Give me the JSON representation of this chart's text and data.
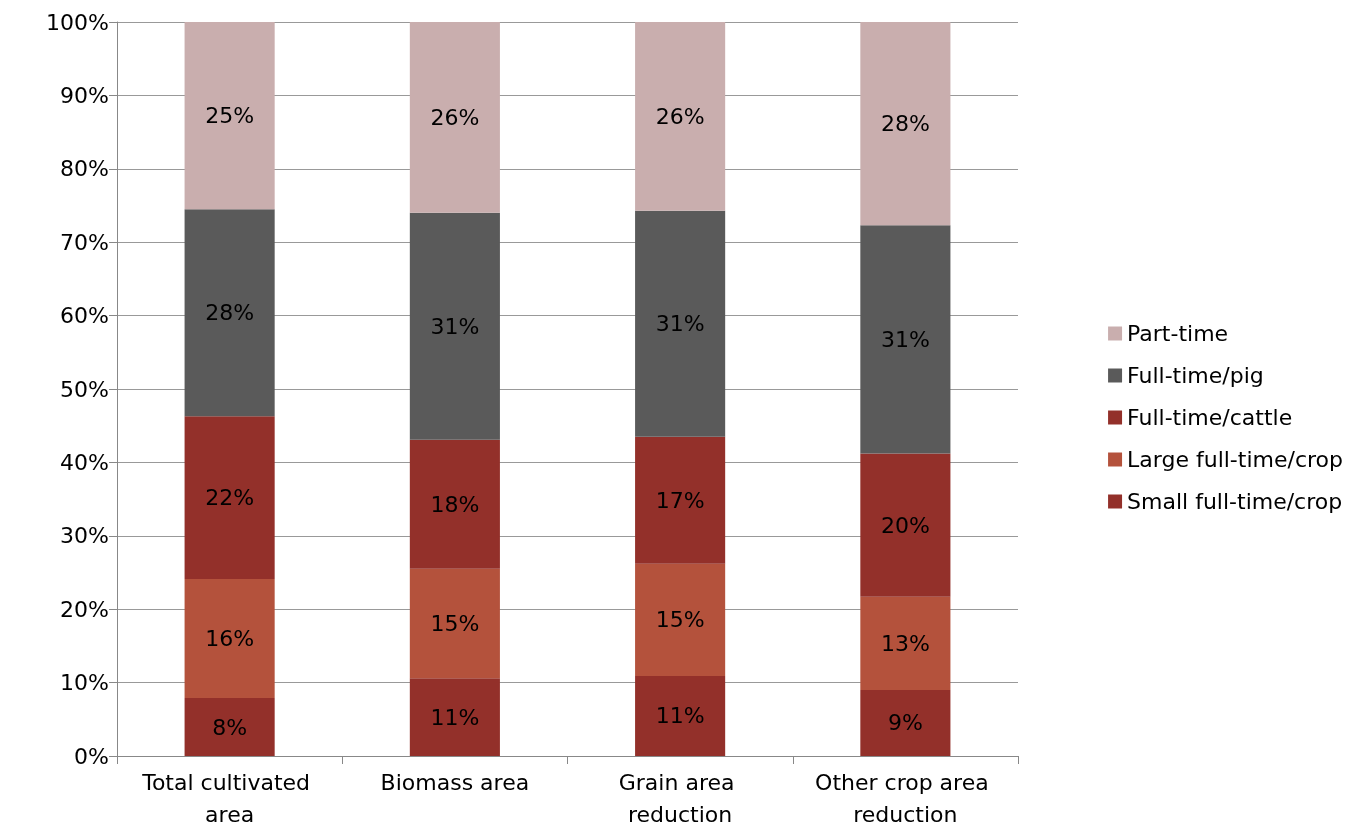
{
  "chart_data": {
    "type": "bar",
    "stacked": true,
    "categories": [
      "Total cultivated area",
      "Biomass area",
      "Grain area reduction",
      "Other crop area reduction"
    ],
    "series": [
      {
        "name": "Small full-time/crop",
        "color": "#93302a",
        "values": [
          7.9,
          10.6,
          10.9,
          9.0
        ],
        "value_labels": [
          "8%",
          "11%",
          "11%",
          "9%"
        ]
      },
      {
        "name": "Large full-time/crop",
        "color": "#b4523c",
        "values": [
          16.2,
          14.9,
          15.3,
          12.7
        ],
        "value_labels": [
          "16%",
          "15%",
          "15%",
          "13%"
        ]
      },
      {
        "name": "Full-time/cattle",
        "color": "#93302a",
        "values": [
          22.2,
          17.6,
          17.3,
          19.5
        ],
        "value_labels": [
          "22%",
          "18%",
          "17%",
          "20%"
        ]
      },
      {
        "name": "Full-time/pig",
        "color": "#5a5a5a",
        "values": [
          28.2,
          30.9,
          30.8,
          31.1
        ],
        "value_labels": [
          "28%",
          "31%",
          "31%",
          "31%"
        ]
      },
      {
        "name": "Part-time",
        "color": "#c9aeae",
        "values": [
          25.5,
          26.0,
          25.7,
          27.7
        ],
        "value_labels": [
          "25%",
          "26%",
          "26%",
          "28%"
        ]
      }
    ],
    "ylim": [
      0,
      100
    ],
    "yticks": [
      {
        "value": 0,
        "label": "0%"
      },
      {
        "value": 10,
        "label": "10%"
      },
      {
        "value": 20,
        "label": "20%"
      },
      {
        "value": 30,
        "label": "30%"
      },
      {
        "value": 40,
        "label": "40%"
      },
      {
        "value": 50,
        "label": "50%"
      },
      {
        "value": 60,
        "label": "60%"
      },
      {
        "value": 70,
        "label": "70%"
      },
      {
        "value": 80,
        "label": "80%"
      },
      {
        "value": 90,
        "label": "90%"
      },
      {
        "value": 100,
        "label": "100%"
      }
    ],
    "grid": "y",
    "legend": "right"
  }
}
